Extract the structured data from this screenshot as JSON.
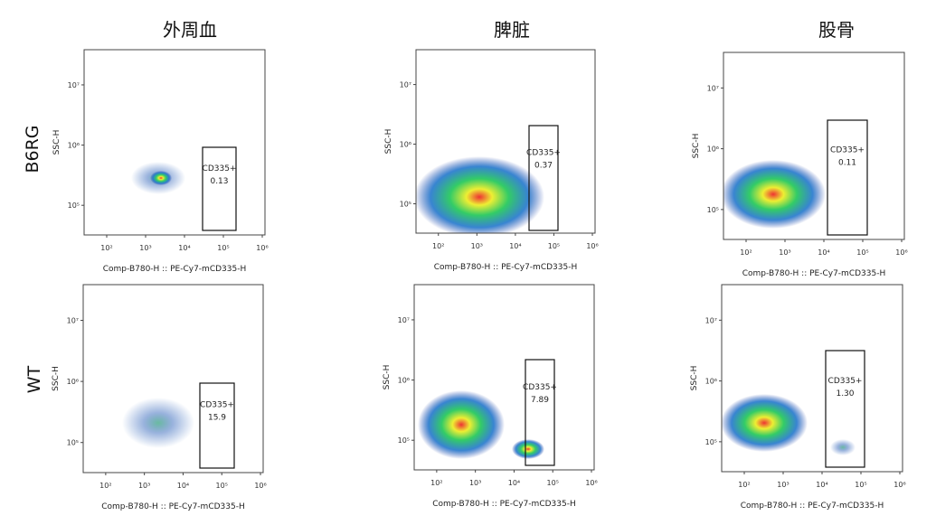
{
  "column_titles": [
    "外周血",
    "脾脏",
    "股骨"
  ],
  "row_labels": [
    "B6RG",
    "WT"
  ],
  "panels": [
    {
      "x_label": "Comp-B780-H :: PE-Cy7-mCD335-H",
      "y_label": "SSC-H",
      "gate_label": "CD335+",
      "gate_value": "0.13",
      "xticks": [
        "10²",
        "10³",
        "10⁴",
        "10⁵",
        "10⁶"
      ],
      "yticks": [
        "10⁷",
        "10⁶",
        "10⁵"
      ]
    },
    {
      "x_label": "Comp-B780-H :: PE-Cy7-mCD335-H",
      "y_label": "SSC-H",
      "gate_label": "CD335+",
      "gate_value": "0.37",
      "xticks": [
        "10²",
        "10³",
        "10⁴",
        "10⁵",
        "10⁶"
      ],
      "yticks": [
        "10⁷",
        "10⁶",
        "10⁵"
      ]
    },
    {
      "x_label": "Comp-B780-H :: PE-Cy7-mCD335-H",
      "y_label": "SSC-H",
      "gate_label": "CD335+",
      "gate_value": "0.11",
      "xticks": [
        "10²",
        "10³",
        "10⁴",
        "10⁵",
        "10⁶"
      ],
      "yticks": [
        "10⁷",
        "10⁶",
        "10⁵"
      ]
    },
    {
      "x_label": "Comp-B780-H :: PE-Cy7-mCD335-H",
      "y_label": "SSC-H",
      "gate_label": "CD335+",
      "gate_value": "15.9",
      "xticks": [
        "10²",
        "10³",
        "10⁴",
        "10⁵",
        "10⁶"
      ],
      "yticks": [
        "10⁷",
        "10⁶",
        "10⁵"
      ]
    },
    {
      "x_label": "Comp-B780-H :: PE-Cy7-mCD335-H",
      "y_label": "SSC-H",
      "gate_label": "CD335+",
      "gate_value": "7.89",
      "xticks": [
        "10²",
        "10³",
        "10⁴",
        "10⁵",
        "10⁶"
      ],
      "yticks": [
        "10⁷",
        "10⁶",
        "10⁵"
      ]
    },
    {
      "x_label": "Comp-B780-H :: PE-Cy7-mCD335-H",
      "y_label": "SSC-H",
      "gate_label": "CD335+",
      "gate_value": "1.30",
      "xticks": [
        "10²",
        "10³",
        "10⁴",
        "10⁵",
        "10⁶"
      ],
      "yticks": [
        "10⁷",
        "10⁶",
        "10⁵"
      ]
    }
  ]
}
